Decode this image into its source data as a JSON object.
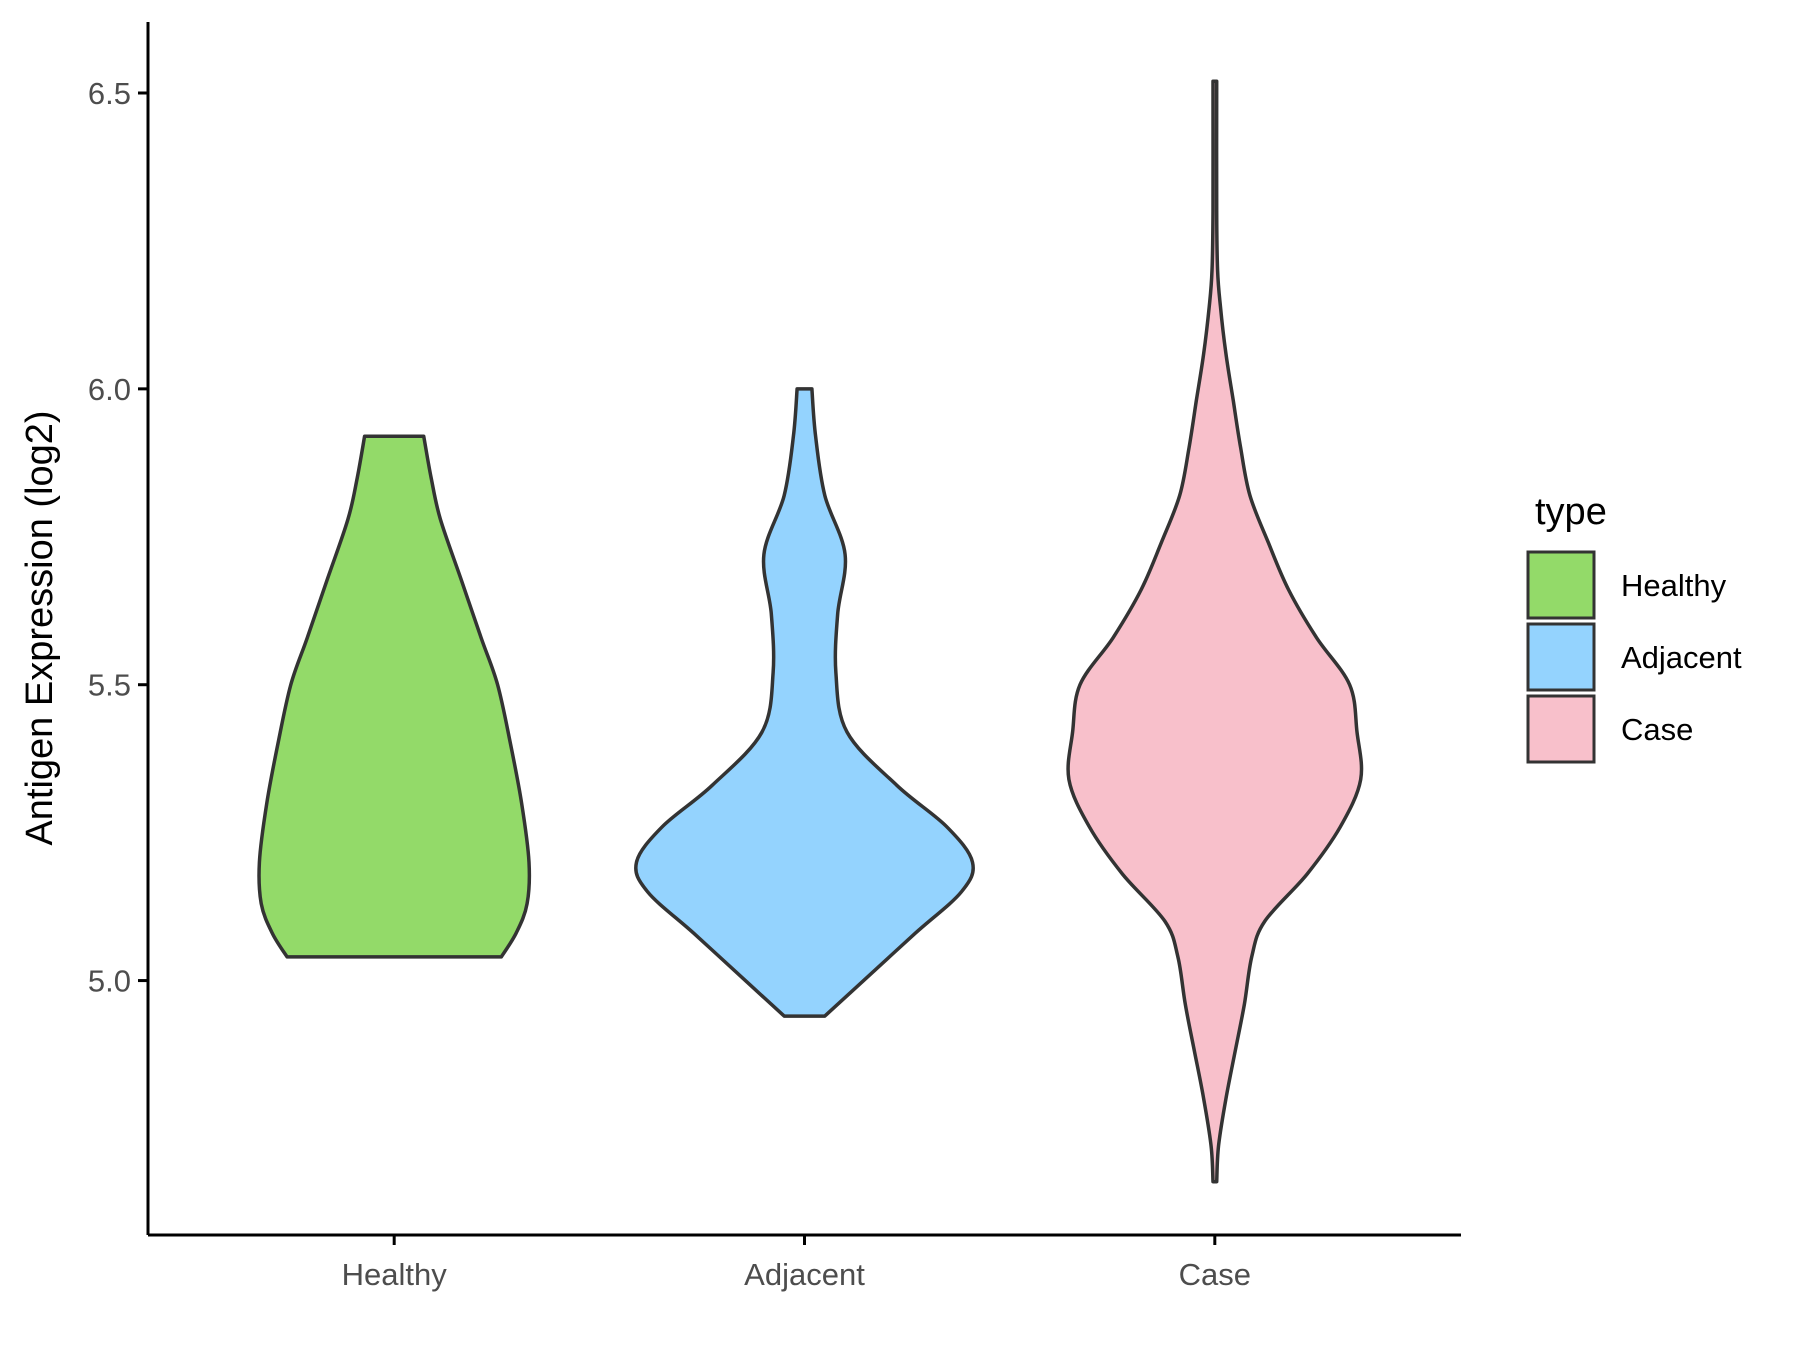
{
  "chart_data": {
    "type": "violin",
    "title": "",
    "xlabel": "",
    "ylabel": "Antigen Expression (log2)",
    "ylim": [
      4.57,
      6.62
    ],
    "yticks": [
      5.0,
      5.5,
      6.0,
      6.5
    ],
    "categories": [
      "Healthy",
      "Adjacent",
      "Case"
    ],
    "legend": {
      "title": "type",
      "position": "right"
    },
    "grid": false,
    "series": [
      {
        "name": "Healthy",
        "color": "#93DA69",
        "min": 5.04,
        "max": 5.92,
        "density": [
          [
            5.04,
            0.58
          ],
          [
            5.08,
            0.66
          ],
          [
            5.13,
            0.72
          ],
          [
            5.2,
            0.73
          ],
          [
            5.3,
            0.69
          ],
          [
            5.4,
            0.63
          ],
          [
            5.5,
            0.56
          ],
          [
            5.58,
            0.47
          ],
          [
            5.68,
            0.36
          ],
          [
            5.78,
            0.25
          ],
          [
            5.85,
            0.2
          ],
          [
            5.92,
            0.16
          ]
        ]
      },
      {
        "name": "Adjacent",
        "color": "#94D3FE",
        "min": 4.94,
        "max": 6.0,
        "density": [
          [
            4.94,
            0.11
          ],
          [
            5.0,
            0.32
          ],
          [
            5.08,
            0.6
          ],
          [
            5.15,
            0.85
          ],
          [
            5.2,
            0.91
          ],
          [
            5.26,
            0.77
          ],
          [
            5.33,
            0.5
          ],
          [
            5.42,
            0.23
          ],
          [
            5.52,
            0.17
          ],
          [
            5.62,
            0.18
          ],
          [
            5.72,
            0.22
          ],
          [
            5.82,
            0.11
          ],
          [
            5.92,
            0.06
          ],
          [
            6.0,
            0.04
          ]
        ]
      },
      {
        "name": "Case",
        "color": "#F8C0CB",
        "min": 4.66,
        "max": 6.52,
        "density": [
          [
            4.66,
            0.01
          ],
          [
            4.72,
            0.02
          ],
          [
            4.8,
            0.06
          ],
          [
            4.88,
            0.11
          ],
          [
            4.96,
            0.16
          ],
          [
            5.04,
            0.2
          ],
          [
            5.1,
            0.27
          ],
          [
            5.18,
            0.5
          ],
          [
            5.26,
            0.68
          ],
          [
            5.34,
            0.79
          ],
          [
            5.42,
            0.77
          ],
          [
            5.5,
            0.73
          ],
          [
            5.58,
            0.55
          ],
          [
            5.66,
            0.4
          ],
          [
            5.74,
            0.29
          ],
          [
            5.82,
            0.19
          ],
          [
            5.9,
            0.14
          ],
          [
            5.98,
            0.1
          ],
          [
            6.06,
            0.06
          ],
          [
            6.14,
            0.03
          ],
          [
            6.2,
            0.015
          ],
          [
            6.3,
            0.01
          ],
          [
            6.52,
            0.01
          ]
        ]
      }
    ]
  }
}
